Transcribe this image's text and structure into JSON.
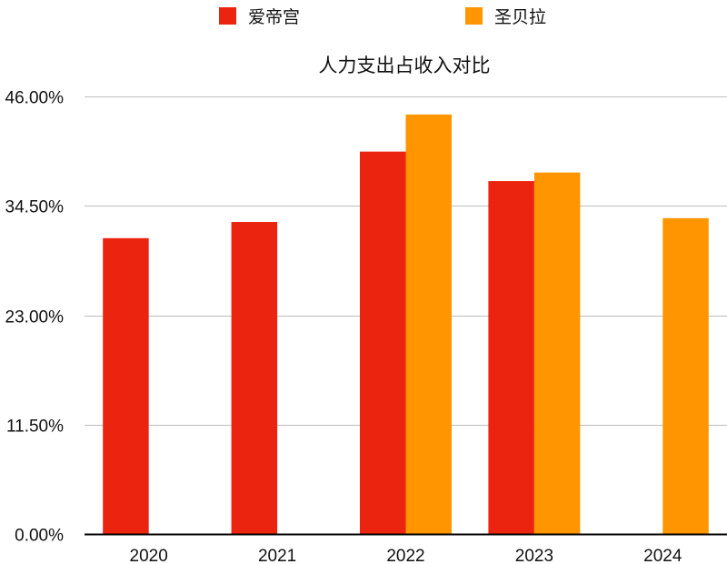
{
  "chart_data": {
    "type": "bar",
    "title": "人力支出占收入对比",
    "xlabel": "",
    "ylabel": "",
    "categories": [
      "2020",
      "2021",
      "2022",
      "2023",
      "2024"
    ],
    "series": [
      {
        "name": "爱帝宫",
        "color": "#EB2410",
        "values": [
          31.1,
          32.8,
          40.2,
          37.1,
          null
        ]
      },
      {
        "name": "圣贝拉",
        "color": "#FF9500",
        "values": [
          null,
          null,
          44.1,
          38.0,
          33.2
        ]
      }
    ],
    "ylim": [
      0,
      46
    ],
    "yticks": [
      "0.00%",
      "11.50%",
      "23.00%",
      "34.50%",
      "46.00%"
    ],
    "ytick_values": [
      0,
      11.5,
      23,
      34.5,
      46
    ],
    "grid": true,
    "legend_position": "top"
  },
  "legend": {
    "items": [
      {
        "label": "爱帝宫",
        "color": "#EB2410"
      },
      {
        "label": "圣贝拉",
        "color": "#FF9500"
      }
    ]
  }
}
